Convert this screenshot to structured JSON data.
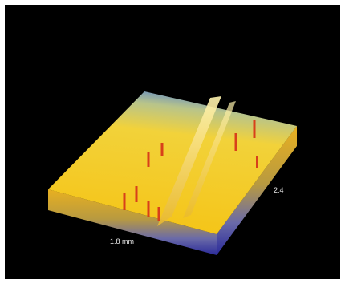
{
  "labels": {
    "width": "1.8 mm",
    "depth": "2.4"
  }
}
